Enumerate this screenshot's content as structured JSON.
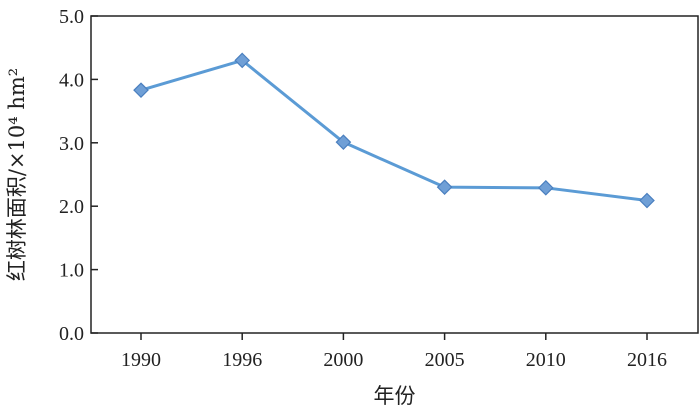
{
  "chart_data": {
    "type": "line",
    "categories": [
      "1990",
      "1996",
      "2000",
      "2005",
      "2010",
      "2016"
    ],
    "series": [
      {
        "values": [
          3.83,
          4.3,
          3.01,
          2.3,
          2.29,
          2.09
        ],
        "color": "#5b9bd5",
        "marker": "diamond"
      }
    ],
    "xlabel": "年份",
    "ylabel": "红树林面积/×10⁴ hm²",
    "ylim": [
      0,
      5
    ],
    "yticks": [
      "0.0",
      "1.0",
      "2.0",
      "3.0",
      "4.0",
      "5.0"
    ],
    "grid": false
  }
}
